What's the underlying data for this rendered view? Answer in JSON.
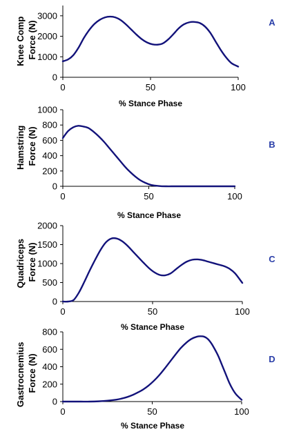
{
  "chart_data": [
    {
      "type": "line",
      "panel_label": "A",
      "ylabel_lines": [
        "Knee Comp",
        "Force (N)"
      ],
      "xlabel": "% Stance Phase",
      "xlim": [
        0,
        100
      ],
      "ylim": [
        0,
        3500
      ],
      "xticks": [
        0,
        50,
        100
      ],
      "yticks": [
        0,
        1000,
        2000,
        3000
      ],
      "series": [
        {
          "color": "#12127a",
          "x": [
            0,
            3,
            6,
            9,
            12,
            15,
            18,
            21,
            24,
            27,
            30,
            33,
            36,
            39,
            42,
            45,
            48,
            51,
            54,
            57,
            60,
            63,
            66,
            69,
            72,
            75,
            78,
            81,
            84,
            87,
            90,
            93,
            96,
            99,
            100
          ],
          "y": [
            780,
            870,
            1080,
            1450,
            1920,
            2300,
            2600,
            2800,
            2920,
            2960,
            2920,
            2790,
            2580,
            2330,
            2080,
            1860,
            1700,
            1610,
            1590,
            1650,
            1840,
            2100,
            2380,
            2580,
            2680,
            2700,
            2650,
            2480,
            2180,
            1760,
            1340,
            980,
            700,
            560,
            520
          ]
        }
      ]
    },
    {
      "type": "line",
      "panel_label": "B",
      "ylabel_lines": [
        "Hamstring",
        "Force (N)"
      ],
      "xlabel": "% Stance Phase",
      "xlim": [
        0,
        100
      ],
      "ylim": [
        0,
        1000
      ],
      "xticks": [
        0,
        50,
        100
      ],
      "yticks": [
        0,
        200,
        400,
        600,
        800,
        1000
      ],
      "series": [
        {
          "color": "#12127a",
          "x": [
            0,
            3,
            6,
            9,
            12,
            15,
            18,
            21,
            24,
            27,
            30,
            33,
            36,
            39,
            42,
            45,
            48,
            51,
            54,
            57,
            60,
            65,
            70,
            75,
            80,
            85,
            90,
            95,
            100
          ],
          "y": [
            630,
            720,
            770,
            790,
            780,
            760,
            710,
            650,
            580,
            500,
            420,
            340,
            260,
            190,
            130,
            80,
            45,
            20,
            8,
            2,
            0,
            0,
            0,
            0,
            0,
            0,
            0,
            0,
            0
          ]
        }
      ]
    },
    {
      "type": "line",
      "panel_label": "C",
      "ylabel_lines": [
        "Quadriceps",
        "Force (N)"
      ],
      "xlabel": "% Stance Phase",
      "xlim": [
        0,
        100
      ],
      "ylim": [
        0,
        2000
      ],
      "xticks": [
        0,
        50,
        100
      ],
      "yticks": [
        0,
        500,
        1000,
        1500,
        2000
      ],
      "series": [
        {
          "color": "#12127a",
          "x": [
            0,
            3,
            6,
            9,
            12,
            15,
            18,
            21,
            24,
            27,
            30,
            33,
            36,
            39,
            42,
            45,
            48,
            51,
            54,
            57,
            60,
            63,
            66,
            69,
            72,
            75,
            78,
            81,
            84,
            87,
            90,
            93,
            96,
            100
          ],
          "y": [
            0,
            0,
            40,
            240,
            520,
            820,
            1100,
            1360,
            1560,
            1660,
            1660,
            1590,
            1470,
            1320,
            1170,
            1020,
            880,
            770,
            700,
            690,
            740,
            850,
            960,
            1050,
            1100,
            1110,
            1090,
            1050,
            1010,
            970,
            930,
            860,
            740,
            490
          ]
        }
      ]
    },
    {
      "type": "line",
      "panel_label": "D",
      "ylabel_lines": [
        "Gastrocnemius",
        "Force (N)"
      ],
      "xlabel": "% Stance Phase",
      "xlim": [
        0,
        100
      ],
      "ylim": [
        0,
        800
      ],
      "xticks": [
        0,
        50,
        100
      ],
      "yticks": [
        0,
        200,
        400,
        600,
        800
      ],
      "series": [
        {
          "color": "#12127a",
          "x": [
            0,
            5,
            10,
            15,
            20,
            25,
            30,
            33,
            36,
            39,
            42,
            45,
            48,
            51,
            54,
            57,
            60,
            63,
            66,
            69,
            72,
            75,
            77,
            79,
            81,
            83,
            85,
            87,
            89,
            91,
            93,
            95,
            97,
            100
          ],
          "y": [
            0,
            0,
            0,
            0,
            3,
            10,
            22,
            35,
            52,
            75,
            105,
            140,
            185,
            240,
            305,
            380,
            460,
            540,
            615,
            675,
            720,
            745,
            750,
            745,
            720,
            670,
            600,
            520,
            420,
            320,
            220,
            140,
            80,
            20
          ]
        }
      ]
    }
  ]
}
